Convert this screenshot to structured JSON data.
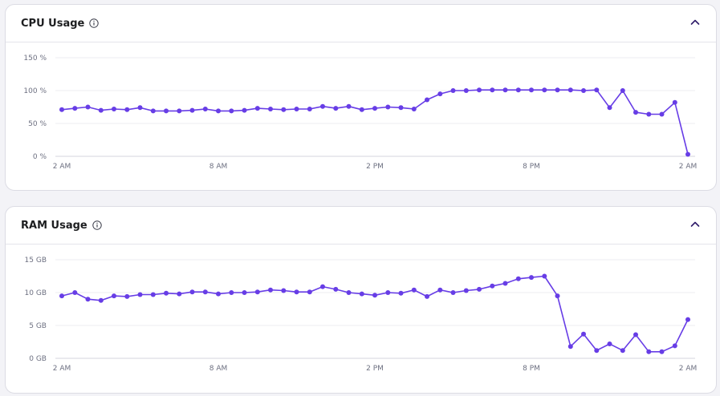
{
  "colors": {
    "line": "#673de6",
    "grid": "#ececf1",
    "axis": "#d5d5de",
    "header_text": "#1d1e20"
  },
  "icons": {
    "info": "info-icon",
    "collapse": "chevron-up-icon"
  },
  "chart_data": [
    {
      "type": "line",
      "title": "CPU Usage",
      "x_ticks": [
        "2 AM",
        "8 AM",
        "2 PM",
        "8 PM",
        "2 AM"
      ],
      "y_ticks": [
        "0 %",
        "50 %",
        "100 %",
        "150 %"
      ],
      "ylim": [
        0,
        150
      ],
      "unit": "%",
      "grid": true,
      "values": [
        71,
        73,
        75,
        70,
        72,
        71,
        74,
        69,
        69,
        69,
        70,
        72,
        69,
        69,
        70,
        73,
        72,
        71,
        72,
        72,
        76,
        73,
        76,
        71,
        73,
        75,
        74,
        72,
        86,
        95,
        100,
        100,
        101,
        101,
        101,
        101,
        101,
        101,
        101,
        101,
        100,
        101,
        74,
        100,
        67,
        64,
        64,
        82,
        3
      ]
    },
    {
      "type": "line",
      "title": "RAM Usage",
      "x_ticks": [
        "2 AM",
        "8 AM",
        "2 PM",
        "8 PM",
        "2 AM"
      ],
      "y_ticks": [
        "0 GB",
        "5 GB",
        "10 GB",
        "15 GB"
      ],
      "ylim": [
        0,
        15
      ],
      "unit": "GB",
      "grid": true,
      "values": [
        9.5,
        10.0,
        9.0,
        8.8,
        9.5,
        9.4,
        9.7,
        9.7,
        9.9,
        9.8,
        10.1,
        10.1,
        9.8,
        10.0,
        10.0,
        10.1,
        10.4,
        10.3,
        10.1,
        10.1,
        10.9,
        10.5,
        10.0,
        9.8,
        9.6,
        10.0,
        9.9,
        10.4,
        9.4,
        10.4,
        10.0,
        10.3,
        10.5,
        11.0,
        11.4,
        12.1,
        12.3,
        12.5,
        9.5,
        1.8,
        3.7,
        1.2,
        2.2,
        1.2,
        3.6,
        1.0,
        1.0,
        1.9,
        5.9
      ]
    }
  ]
}
